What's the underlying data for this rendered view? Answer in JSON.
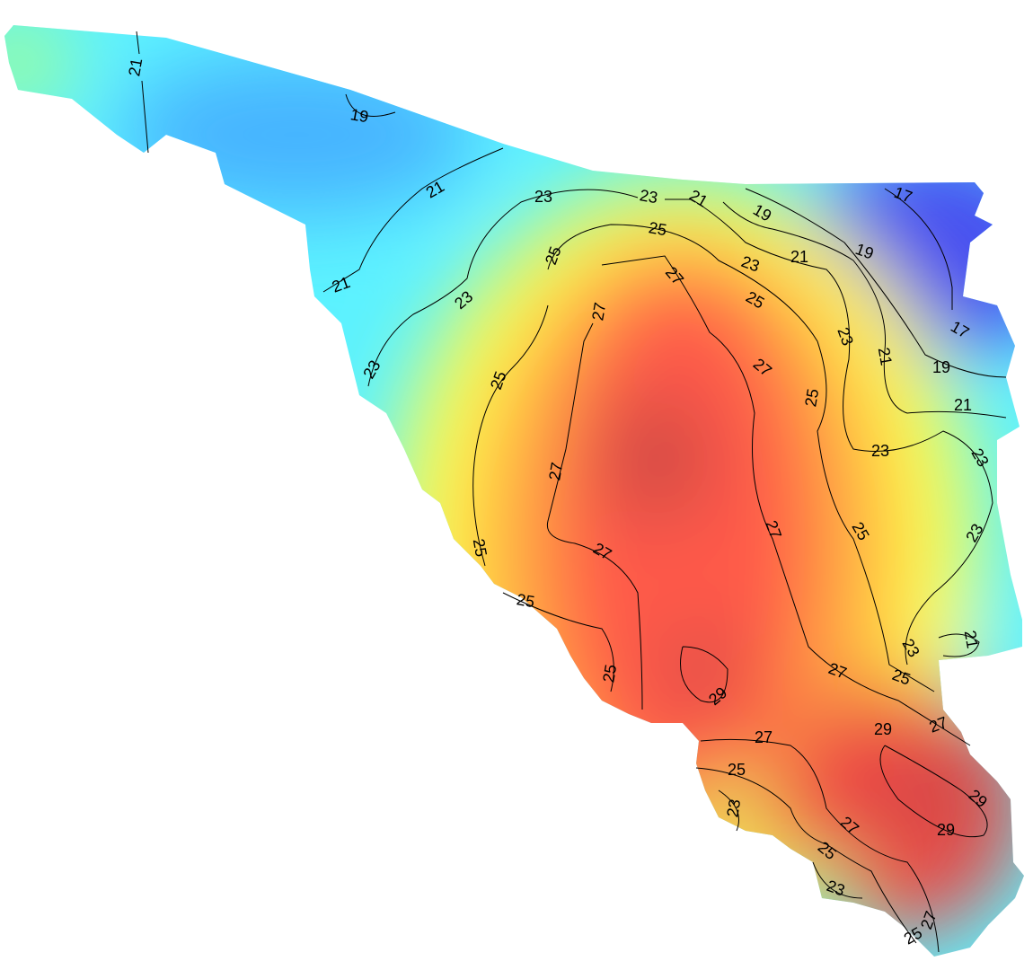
{
  "map": {
    "contour_labels": [
      21,
      19,
      21,
      21,
      23,
      23,
      21,
      19,
      17,
      25,
      25,
      27,
      23,
      21,
      19,
      23,
      25,
      27,
      17,
      23,
      21,
      19,
      23,
      27,
      25,
      25,
      21,
      23,
      23,
      27,
      27,
      25,
      23,
      25,
      27,
      25,
      21,
      23,
      25,
      27,
      25,
      29,
      27,
      29,
      27,
      25,
      29,
      23,
      29,
      27,
      25,
      23,
      27,
      25
    ]
  }
}
